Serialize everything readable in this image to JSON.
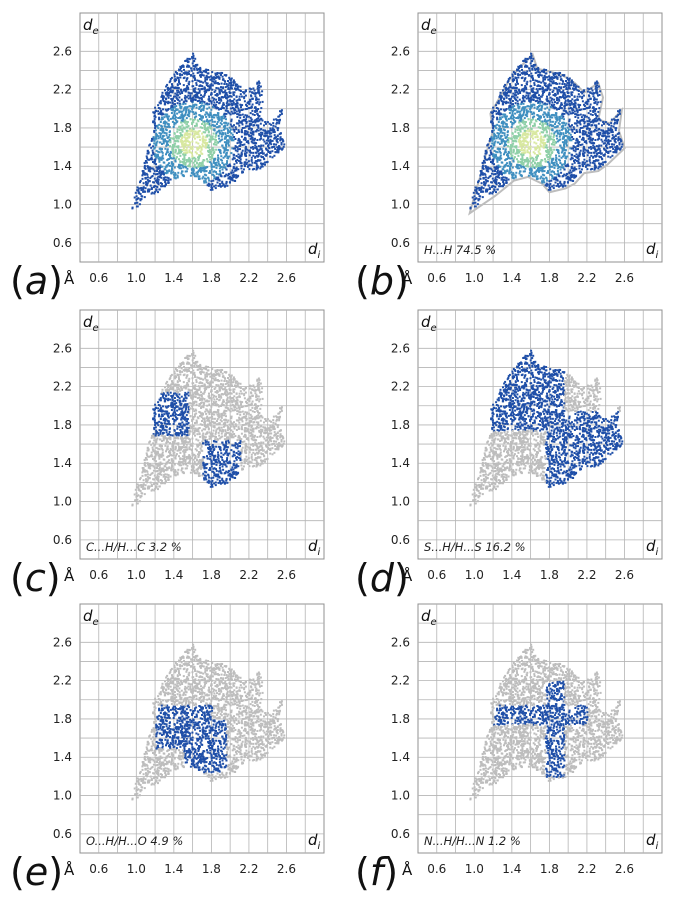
{
  "figure": {
    "x_axis_label": "d",
    "x_axis_sub": "i",
    "y_axis_label": "d",
    "y_axis_sub": "e",
    "unit": "Å",
    "x_ticks": [
      "0.6",
      "1.0",
      "1.4",
      "1.8",
      "2.2",
      "2.6"
    ],
    "y_ticks": [
      "2.6",
      "2.2",
      "1.8",
      "1.4",
      "1.0",
      "0.6"
    ],
    "colors": {
      "grid": "#b4b4b4",
      "frame": "#909090",
      "background_points": "#bdbdbd",
      "highlight_points": "#1f4fa8",
      "density_mid": "#3f8fc0",
      "density_high": "#8fd0a8",
      "density_peak": "#d8e8a0"
    }
  },
  "chart_data": [
    {
      "panel": "(a)",
      "type": "scatter",
      "subtype": "fingerprint-full",
      "label": "",
      "percent": "",
      "xlim": [
        0.4,
        3.0
      ],
      "ylim": [
        0.4,
        3.0
      ],
      "x_ticks": [
        0.6,
        1.0,
        1.4,
        1.8,
        2.2,
        2.6
      ],
      "y_ticks": [
        0.6,
        1.0,
        1.4,
        1.8,
        2.2,
        2.6
      ],
      "highlight_regions": []
    },
    {
      "panel": "(b)",
      "type": "scatter",
      "subtype": "fingerprint-contact",
      "label": "H...H",
      "percent": "74.5 %",
      "xlim": [
        0.4,
        3.0
      ],
      "ylim": [
        0.4,
        3.0
      ],
      "x_ticks": [
        0.6,
        1.0,
        1.4,
        1.8,
        2.2,
        2.6
      ],
      "y_ticks": [
        0.6,
        1.0,
        1.4,
        1.8,
        2.2,
        2.6
      ],
      "highlight_regions": [
        "main-body"
      ]
    },
    {
      "panel": "(c)",
      "type": "scatter",
      "subtype": "fingerprint-contact",
      "label": "C...H/H...C",
      "percent": "3.2 %",
      "xlim": [
        0.4,
        3.0
      ],
      "ylim": [
        0.4,
        3.0
      ],
      "x_ticks": [
        0.6,
        1.0,
        1.4,
        1.8,
        2.2,
        2.6
      ],
      "y_ticks": [
        0.6,
        1.0,
        1.4,
        1.8,
        2.2,
        2.6
      ],
      "highlight_regions": [
        {
          "di_range": [
            1.15,
            1.55
          ],
          "de_range": [
            1.7,
            2.15
          ]
        },
        {
          "di_range": [
            1.7,
            2.1
          ],
          "de_range": [
            1.15,
            1.65
          ]
        }
      ]
    },
    {
      "panel": "(d)",
      "type": "scatter",
      "subtype": "fingerprint-contact",
      "label": "S...H/H...S",
      "percent": "16.2 %",
      "xlim": [
        0.4,
        3.0
      ],
      "ylim": [
        0.4,
        3.0
      ],
      "x_ticks": [
        0.6,
        1.0,
        1.4,
        1.8,
        2.2,
        2.6
      ],
      "y_ticks": [
        0.6,
        1.0,
        1.4,
        1.8,
        2.2,
        2.6
      ],
      "highlight_regions": [
        {
          "di_range": [
            1.15,
            1.95
          ],
          "de_range": [
            1.75,
            2.6
          ]
        },
        {
          "di_range": [
            1.75,
            2.6
          ],
          "de_range": [
            1.15,
            1.95
          ]
        }
      ]
    },
    {
      "panel": "(e)",
      "type": "scatter",
      "subtype": "fingerprint-contact",
      "label": "O...H/H...O",
      "percent": "4.9 %",
      "xlim": [
        0.4,
        3.0
      ],
      "ylim": [
        0.4,
        3.0
      ],
      "x_ticks": [
        0.6,
        1.0,
        1.4,
        1.8,
        2.2,
        2.6
      ],
      "y_ticks": [
        0.6,
        1.0,
        1.4,
        1.8,
        2.2,
        2.6
      ],
      "highlight_regions": [
        {
          "di_range": [
            1.2,
            1.8
          ],
          "de_range": [
            1.5,
            1.95
          ]
        },
        {
          "di_range": [
            1.5,
            1.95
          ],
          "de_range": [
            1.25,
            1.8
          ]
        }
      ]
    },
    {
      "panel": "(f)",
      "type": "scatter",
      "subtype": "fingerprint-contact",
      "label": "N...H/H...N",
      "percent": "1.2 %",
      "xlim": [
        0.4,
        3.0
      ],
      "ylim": [
        0.4,
        3.0
      ],
      "x_ticks": [
        0.6,
        1.0,
        1.4,
        1.8,
        2.2,
        2.6
      ],
      "y_ticks": [
        0.6,
        1.0,
        1.4,
        1.8,
        2.2,
        2.6
      ],
      "highlight_regions": [
        {
          "di_range": [
            1.2,
            2.2
          ],
          "de_range": [
            1.75,
            1.95
          ]
        },
        {
          "di_range": [
            1.75,
            1.95
          ],
          "de_range": [
            1.2,
            2.2
          ]
        }
      ]
    }
  ]
}
